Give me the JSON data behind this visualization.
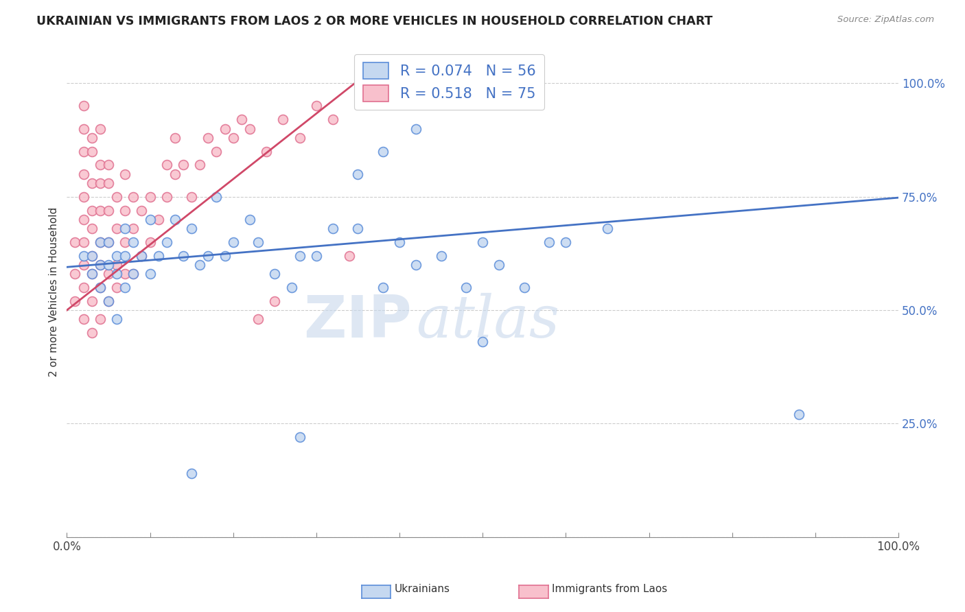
{
  "title": "UKRAINIAN VS IMMIGRANTS FROM LAOS 2 OR MORE VEHICLES IN HOUSEHOLD CORRELATION CHART",
  "source": "Source: ZipAtlas.com",
  "ylabel": "2 or more Vehicles in Household",
  "watermark_zip": "ZIP",
  "watermark_atlas": "atlas",
  "legend1_label": "Ukrainians",
  "legend2_label": "Immigrants from Laos",
  "R_blue": 0.074,
  "N_blue": 56,
  "R_pink": 0.518,
  "N_pink": 75,
  "blue_fill": "#c5d8f0",
  "pink_fill": "#f8c0cc",
  "blue_edge": "#5b8dd9",
  "pink_edge": "#e07090",
  "blue_line_color": "#4472c4",
  "pink_line_color": "#d04868",
  "blue_scatter": [
    [
      0.02,
      0.62
    ],
    [
      0.03,
      0.58
    ],
    [
      0.03,
      0.62
    ],
    [
      0.04,
      0.55
    ],
    [
      0.04,
      0.6
    ],
    [
      0.04,
      0.65
    ],
    [
      0.05,
      0.52
    ],
    [
      0.05,
      0.6
    ],
    [
      0.05,
      0.65
    ],
    [
      0.06,
      0.48
    ],
    [
      0.06,
      0.58
    ],
    [
      0.06,
      0.62
    ],
    [
      0.07,
      0.55
    ],
    [
      0.07,
      0.62
    ],
    [
      0.07,
      0.68
    ],
    [
      0.08,
      0.58
    ],
    [
      0.08,
      0.65
    ],
    [
      0.09,
      0.62
    ],
    [
      0.1,
      0.58
    ],
    [
      0.1,
      0.7
    ],
    [
      0.11,
      0.62
    ],
    [
      0.12,
      0.65
    ],
    [
      0.13,
      0.7
    ],
    [
      0.14,
      0.62
    ],
    [
      0.15,
      0.68
    ],
    [
      0.16,
      0.6
    ],
    [
      0.17,
      0.62
    ],
    [
      0.18,
      0.75
    ],
    [
      0.19,
      0.62
    ],
    [
      0.2,
      0.65
    ],
    [
      0.22,
      0.7
    ],
    [
      0.23,
      0.65
    ],
    [
      0.25,
      0.58
    ],
    [
      0.27,
      0.55
    ],
    [
      0.28,
      0.62
    ],
    [
      0.3,
      0.62
    ],
    [
      0.32,
      0.68
    ],
    [
      0.35,
      0.68
    ],
    [
      0.38,
      0.55
    ],
    [
      0.4,
      0.65
    ],
    [
      0.42,
      0.6
    ],
    [
      0.45,
      0.62
    ],
    [
      0.48,
      0.55
    ],
    [
      0.5,
      0.65
    ],
    [
      0.52,
      0.6
    ],
    [
      0.55,
      0.55
    ],
    [
      0.58,
      0.65
    ],
    [
      0.35,
      0.8
    ],
    [
      0.38,
      0.85
    ],
    [
      0.42,
      0.9
    ],
    [
      0.15,
      0.14
    ],
    [
      0.28,
      0.22
    ],
    [
      0.5,
      0.43
    ],
    [
      0.6,
      0.65
    ],
    [
      0.65,
      0.68
    ],
    [
      0.88,
      0.27
    ]
  ],
  "pink_scatter": [
    [
      0.01,
      0.52
    ],
    [
      0.01,
      0.58
    ],
    [
      0.01,
      0.65
    ],
    [
      0.02,
      0.48
    ],
    [
      0.02,
      0.55
    ],
    [
      0.02,
      0.6
    ],
    [
      0.02,
      0.65
    ],
    [
      0.02,
      0.7
    ],
    [
      0.02,
      0.75
    ],
    [
      0.02,
      0.8
    ],
    [
      0.02,
      0.85
    ],
    [
      0.02,
      0.9
    ],
    [
      0.02,
      0.95
    ],
    [
      0.03,
      0.45
    ],
    [
      0.03,
      0.52
    ],
    [
      0.03,
      0.58
    ],
    [
      0.03,
      0.62
    ],
    [
      0.03,
      0.68
    ],
    [
      0.03,
      0.72
    ],
    [
      0.03,
      0.78
    ],
    [
      0.03,
      0.85
    ],
    [
      0.04,
      0.48
    ],
    [
      0.04,
      0.55
    ],
    [
      0.04,
      0.6
    ],
    [
      0.04,
      0.65
    ],
    [
      0.04,
      0.72
    ],
    [
      0.04,
      0.78
    ],
    [
      0.04,
      0.82
    ],
    [
      0.05,
      0.52
    ],
    [
      0.05,
      0.58
    ],
    [
      0.05,
      0.65
    ],
    [
      0.05,
      0.72
    ],
    [
      0.05,
      0.78
    ],
    [
      0.06,
      0.55
    ],
    [
      0.06,
      0.6
    ],
    [
      0.06,
      0.68
    ],
    [
      0.06,
      0.75
    ],
    [
      0.07,
      0.58
    ],
    [
      0.07,
      0.65
    ],
    [
      0.07,
      0.72
    ],
    [
      0.07,
      0.8
    ],
    [
      0.08,
      0.58
    ],
    [
      0.08,
      0.68
    ],
    [
      0.08,
      0.75
    ],
    [
      0.09,
      0.62
    ],
    [
      0.09,
      0.72
    ],
    [
      0.1,
      0.65
    ],
    [
      0.1,
      0.75
    ],
    [
      0.11,
      0.7
    ],
    [
      0.12,
      0.75
    ],
    [
      0.12,
      0.82
    ],
    [
      0.13,
      0.8
    ],
    [
      0.13,
      0.88
    ],
    [
      0.14,
      0.82
    ],
    [
      0.15,
      0.75
    ],
    [
      0.16,
      0.82
    ],
    [
      0.17,
      0.88
    ],
    [
      0.18,
      0.85
    ],
    [
      0.19,
      0.9
    ],
    [
      0.2,
      0.88
    ],
    [
      0.21,
      0.92
    ],
    [
      0.22,
      0.9
    ],
    [
      0.23,
      0.48
    ],
    [
      0.24,
      0.85
    ],
    [
      0.25,
      0.52
    ],
    [
      0.26,
      0.92
    ],
    [
      0.28,
      0.88
    ],
    [
      0.3,
      0.95
    ],
    [
      0.32,
      0.92
    ],
    [
      0.34,
      0.62
    ],
    [
      0.36,
      0.97
    ],
    [
      0.4,
      0.99
    ],
    [
      0.03,
      0.88
    ],
    [
      0.04,
      0.9
    ],
    [
      0.05,
      0.82
    ]
  ],
  "blue_line_x": [
    0.0,
    1.0
  ],
  "blue_line_y": [
    0.595,
    0.748
  ],
  "pink_line_x": [
    0.0,
    0.36
  ],
  "pink_line_y": [
    0.5,
    1.02
  ],
  "xlim": [
    0.0,
    1.0
  ],
  "ylim": [
    0.0,
    1.08
  ],
  "ytick_vals": [
    0.0,
    0.25,
    0.5,
    0.75,
    1.0
  ],
  "ytick_labels": [
    "",
    "25.0%",
    "50.0%",
    "75.0%",
    "100.0%"
  ],
  "xtick_vals": [
    0.0,
    0.1,
    0.2,
    0.3,
    0.4,
    0.5,
    0.6,
    0.7,
    0.8,
    0.9,
    1.0
  ],
  "xtick_labels_show": {
    "0.0": "0.0%",
    "1.0": "100.0%"
  },
  "grid_color": "#cccccc",
  "tick_label_color": "#4472c4"
}
